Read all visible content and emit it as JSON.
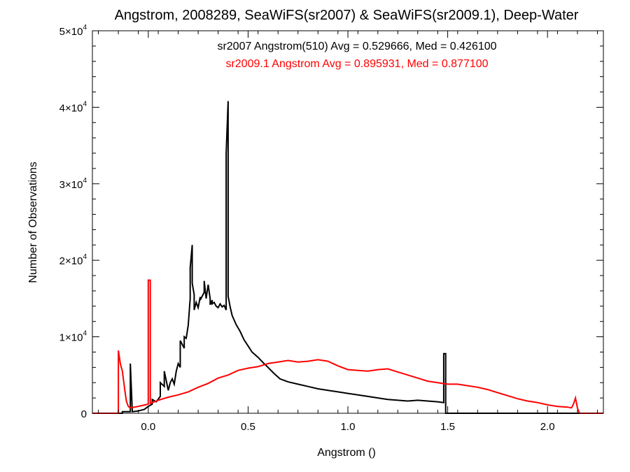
{
  "chart_data": {
    "type": "line",
    "title": "Angstrom, 2008289, SeaWiFS(sr2007) & SeaWiFS(sr2009.1), Deep-Water",
    "xlabel": "Angstrom ()",
    "ylabel": "Number of Observations",
    "xlim": [
      -0.28,
      2.28
    ],
    "ylim": [
      0,
      50000
    ],
    "x_ticks": [
      0.0,
      0.5,
      1.0,
      1.5,
      2.0
    ],
    "x_tick_labels": [
      "0.0",
      "0.5",
      "1.0",
      "1.5",
      "2.0"
    ],
    "y_ticks": [
      {
        "value": 0,
        "mantissa": "0",
        "exponent": ""
      },
      {
        "value": 10000,
        "mantissa": "1×10",
        "exponent": "4"
      },
      {
        "value": 20000,
        "mantissa": "2×10",
        "exponent": "4"
      },
      {
        "value": 30000,
        "mantissa": "3×10",
        "exponent": "4"
      },
      {
        "value": 40000,
        "mantissa": "4×10",
        "exponent": "4"
      },
      {
        "value": 50000,
        "mantissa": "5×10",
        "exponent": "4"
      }
    ],
    "grid": false,
    "annotations": [
      {
        "text": "sr2007 Angstrom(510) Avg = 0.529666, Med = 0.426100",
        "color": "#000000"
      },
      {
        "text": "sr2009.1 Angstrom Avg = 0.895931, Med = 0.877100",
        "color": "#ff0000"
      }
    ],
    "series": [
      {
        "color": "#000000",
        "x": [
          -0.28,
          -0.13,
          -0.13,
          -0.09,
          -0.09,
          -0.08,
          -0.05,
          -0.02,
          0.0,
          0.02,
          0.02,
          0.04,
          0.06,
          0.06,
          0.08,
          0.08,
          0.1,
          0.11,
          0.12,
          0.13,
          0.14,
          0.15,
          0.16,
          0.16,
          0.18,
          0.18,
          0.19,
          0.2,
          0.21,
          0.21,
          0.22,
          0.22,
          0.23,
          0.23,
          0.24,
          0.25,
          0.26,
          0.26,
          0.28,
          0.28,
          0.29,
          0.3,
          0.31,
          0.31,
          0.32,
          0.32,
          0.33,
          0.34,
          0.35,
          0.36,
          0.37,
          0.38,
          0.39,
          0.39,
          0.4,
          0.4,
          0.41,
          0.42,
          0.44,
          0.46,
          0.48,
          0.5,
          0.52,
          0.55,
          0.58,
          0.6,
          0.63,
          0.66,
          0.7,
          0.75,
          0.8,
          0.85,
          0.9,
          0.95,
          1.0,
          1.05,
          1.1,
          1.15,
          1.2,
          1.25,
          1.3,
          1.35,
          1.4,
          1.45,
          1.48,
          1.48,
          1.49,
          1.49,
          1.55,
          1.7,
          1.9,
          2.1,
          2.28
        ],
        "y": [
          0,
          0,
          200,
          200,
          6500,
          200,
          300,
          500,
          900,
          1200,
          1800,
          1500,
          2200,
          4000,
          3500,
          5500,
          3000,
          4000,
          4500,
          3800,
          5500,
          6500,
          6000,
          9500,
          8500,
          10000,
          9800,
          11500,
          15000,
          19000,
          22000,
          17000,
          15500,
          13500,
          14500,
          13800,
          15200,
          14800,
          15800,
          17300,
          15000,
          16800,
          15000,
          14200,
          14800,
          14300,
          14500,
          14000,
          13800,
          14300,
          13900,
          14100,
          13500,
          34000,
          40800,
          15300,
          13900,
          12800,
          11600,
          10700,
          9600,
          8800,
          8000,
          7300,
          6500,
          6000,
          5200,
          4500,
          4100,
          3800,
          3500,
          3200,
          3000,
          2800,
          2600,
          2400,
          2200,
          2000,
          1800,
          1700,
          1600,
          1700,
          1600,
          1500,
          1400,
          7800,
          7800,
          0,
          0,
          0,
          0,
          0,
          0
        ]
      },
      {
        "color": "#ff0000",
        "x": [
          -0.28,
          -0.15,
          -0.15,
          -0.14,
          -0.13,
          -0.12,
          -0.11,
          -0.1,
          -0.09,
          -0.05,
          0.0,
          0.0,
          0.01,
          0.01,
          0.05,
          0.1,
          0.15,
          0.2,
          0.25,
          0.3,
          0.35,
          0.4,
          0.45,
          0.5,
          0.55,
          0.6,
          0.65,
          0.7,
          0.75,
          0.8,
          0.85,
          0.9,
          0.95,
          1.0,
          1.05,
          1.1,
          1.15,
          1.2,
          1.25,
          1.3,
          1.35,
          1.4,
          1.45,
          1.5,
          1.55,
          1.6,
          1.65,
          1.7,
          1.75,
          1.8,
          1.85,
          1.9,
          1.95,
          2.0,
          2.05,
          2.1,
          2.12,
          2.13,
          2.14,
          2.15,
          2.16,
          2.28
        ],
        "y": [
          0,
          0,
          8200,
          6500,
          5500,
          3500,
          1600,
          900,
          700,
          900,
          1200,
          17400,
          17400,
          1300,
          1700,
          2100,
          2400,
          2800,
          3400,
          3900,
          4600,
          5000,
          5600,
          5900,
          6100,
          6500,
          6700,
          6900,
          6700,
          6800,
          7000,
          6800,
          6200,
          5700,
          5600,
          5500,
          5700,
          5800,
          5400,
          5000,
          4600,
          4200,
          4000,
          3800,
          3800,
          3600,
          3400,
          3100,
          2700,
          2300,
          1900,
          1600,
          1400,
          1100,
          900,
          800,
          700,
          1200,
          2000,
          700,
          0,
          0
        ]
      }
    ]
  }
}
